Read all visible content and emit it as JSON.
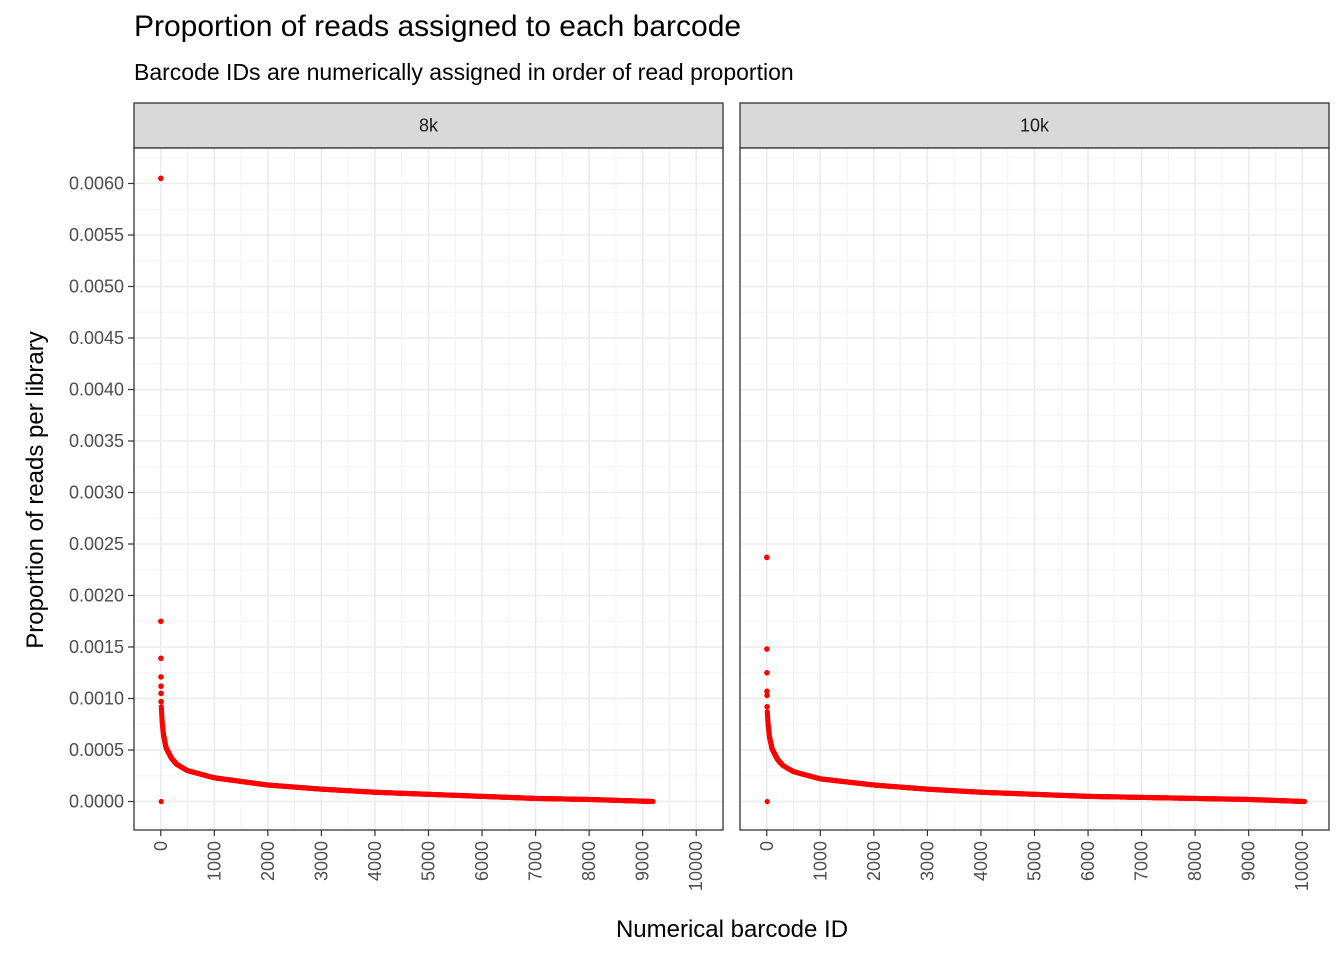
{
  "chart_data": {
    "type": "scatter",
    "title": "Proportion of reads assigned to each barcode",
    "subtitle": "Barcode IDs are numerically assigned in order of read proportion",
    "xlabel": "Numerical barcode ID",
    "ylabel": "Proportion of reads per library",
    "xlim": [
      -500,
      10500
    ],
    "ylim": [
      -0.00028,
      0.00636
    ],
    "x_ticks": [
      "0",
      "1000",
      "2000",
      "3000",
      "4000",
      "5000",
      "6000",
      "7000",
      "8000",
      "9000",
      "10000"
    ],
    "y_ticks": [
      "0.0000",
      "0.0005",
      "0.0010",
      "0.0015",
      "0.0020",
      "0.0025",
      "0.0030",
      "0.0035",
      "0.0040",
      "0.0045",
      "0.0050",
      "0.0055",
      "0.0060"
    ],
    "grid": true,
    "point_color": "#FF0000",
    "facets": [
      {
        "label": "8k",
        "n_barcodes": 9200,
        "top_points": [
          {
            "x": 1,
            "y": 0.00605
          },
          {
            "x": 2,
            "y": 0.00175
          },
          {
            "x": 3,
            "y": 0.00139
          },
          {
            "x": 4,
            "y": 0.00121
          },
          {
            "x": 5,
            "y": 0.00112
          },
          {
            "x": 6,
            "y": 0.00105
          },
          {
            "x": 7,
            "y": 0.00097
          }
        ],
        "curve": [
          {
            "x": 10,
            "y": 0.00092
          },
          {
            "x": 25,
            "y": 0.00078
          },
          {
            "x": 50,
            "y": 0.00065
          },
          {
            "x": 100,
            "y": 0.00052
          },
          {
            "x": 200,
            "y": 0.00042
          },
          {
            "x": 300,
            "y": 0.00036
          },
          {
            "x": 500,
            "y": 0.0003
          },
          {
            "x": 1000,
            "y": 0.00023
          },
          {
            "x": 2000,
            "y": 0.00016
          },
          {
            "x": 3000,
            "y": 0.00012
          },
          {
            "x": 4000,
            "y": 9e-05
          },
          {
            "x": 5000,
            "y": 7e-05
          },
          {
            "x": 6000,
            "y": 5e-05
          },
          {
            "x": 7000,
            "y": 3e-05
          },
          {
            "x": 8000,
            "y": 2e-05
          },
          {
            "x": 9200,
            "y": 0.0
          }
        ]
      },
      {
        "label": "10k",
        "n_barcodes": 10050,
        "top_points": [
          {
            "x": 1,
            "y": 0.00237
          },
          {
            "x": 2,
            "y": 0.00148
          },
          {
            "x": 3,
            "y": 0.00125
          },
          {
            "x": 4,
            "y": 0.00107
          },
          {
            "x": 5,
            "y": 0.00103
          },
          {
            "x": 6,
            "y": 0.00092
          }
        ],
        "curve": [
          {
            "x": 10,
            "y": 0.00087
          },
          {
            "x": 25,
            "y": 0.00075
          },
          {
            "x": 50,
            "y": 0.00063
          },
          {
            "x": 100,
            "y": 0.00051
          },
          {
            "x": 200,
            "y": 0.00041
          },
          {
            "x": 300,
            "y": 0.00035
          },
          {
            "x": 500,
            "y": 0.00029
          },
          {
            "x": 1000,
            "y": 0.00022
          },
          {
            "x": 2000,
            "y": 0.00016
          },
          {
            "x": 3000,
            "y": 0.00012
          },
          {
            "x": 4000,
            "y": 9e-05
          },
          {
            "x": 5000,
            "y": 7e-05
          },
          {
            "x": 6000,
            "y": 5e-05
          },
          {
            "x": 7000,
            "y": 4e-05
          },
          {
            "x": 8000,
            "y": 3e-05
          },
          {
            "x": 9000,
            "y": 2e-05
          },
          {
            "x": 10050,
            "y": 0.0
          }
        ]
      }
    ]
  }
}
